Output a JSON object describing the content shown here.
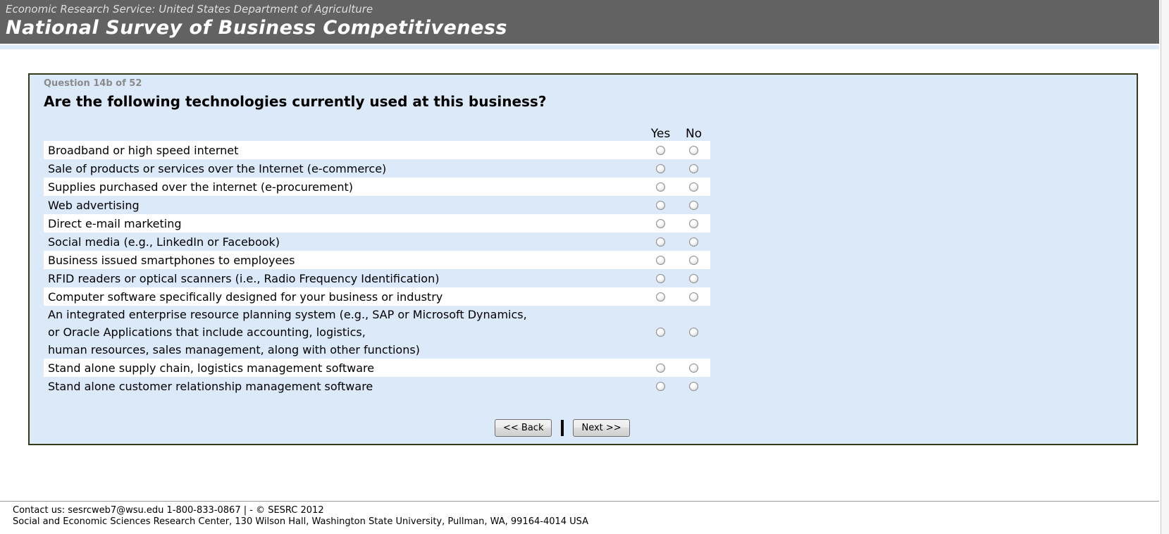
{
  "header": {
    "agency_line": "Economic Research Service: United States Department of Agriculture",
    "survey_title": "National Survey of Business Competitiveness"
  },
  "question_panel": {
    "progress_label": "Question 14b of 52",
    "question_title": "Are the following technologies currently used at this business?",
    "columns": {
      "yes_label": "Yes",
      "no_label": "No"
    },
    "items": [
      {
        "label": "Broadband or high speed internet"
      },
      {
        "label": "Sale of products or services over the Internet (e-commerce)"
      },
      {
        "label": "Supplies purchased over the internet (e-procurement)"
      },
      {
        "label": "Web advertising"
      },
      {
        "label": "Direct e-mail marketing"
      },
      {
        "label": "Social media (e.g., LinkedIn or Facebook)"
      },
      {
        "label": "Business issued smartphones to employees"
      },
      {
        "label": "RFID readers or optical scanners (i.e., Radio Frequency Identification)"
      },
      {
        "label": "Computer software specifically designed for your business or industry"
      },
      {
        "label": "An integrated enterprise resource planning system (e.g., SAP or Microsoft Dynamics,\nor Oracle Applications that include accounting, logistics,\nhuman resources, sales management, along with other functions)"
      },
      {
        "label": "Stand alone supply chain, logistics management software"
      },
      {
        "label": "Stand alone customer relationship management software"
      }
    ],
    "radio_state": "all-unselected",
    "buttons": {
      "back_label": "<< Back",
      "next_label": "Next >>"
    }
  },
  "footer": {
    "line1": "Contact us: sesrcweb7@wsu.edu 1-800-833-0867 | - © SESRC 2012",
    "line2": "Social and Economic Sciences Research Center, 130 Wilson Hall, Washington State University, Pullman, WA, 99164-4014 USA"
  },
  "colors": {
    "banner_background": "#626262",
    "banner_accent_strip": "#e0ebf9",
    "panel_background": "#dce9f9",
    "panel_border": "#323a18",
    "row_band_white": "#ffffff",
    "progress_label_gray": "#8a8a8a"
  }
}
